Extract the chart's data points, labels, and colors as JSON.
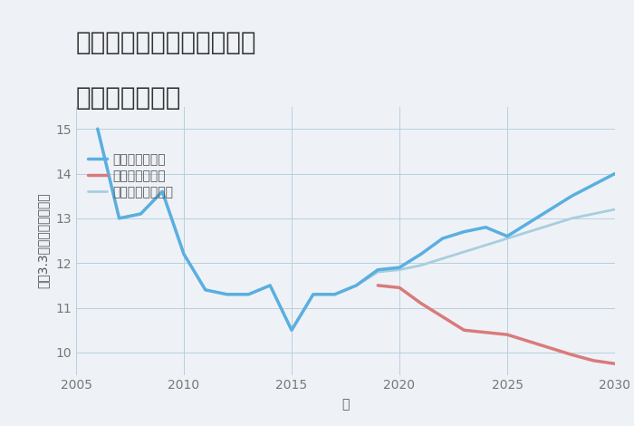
{
  "title_line1": "三重県桑名市長島町浦安の",
  "title_line2": "土地の価格推移",
  "xlabel": "年",
  "ylabel": "平（3.3㎡）単価（万円）",
  "background_color": "#eef2f7",
  "plot_background": "#eef2f7",
  "grid_color": "#b8cede",
  "good_scenario": {
    "label": "グッドシナリオ",
    "color": "#5aafe0",
    "linewidth": 2.5,
    "years": [
      2006,
      2007,
      2008,
      2009,
      2010,
      2011,
      2012,
      2013,
      2014,
      2015,
      2016,
      2017,
      2018,
      2019,
      2020,
      2021,
      2022,
      2023,
      2024,
      2025,
      2026,
      2027,
      2028,
      2029,
      2030
    ],
    "values": [
      15.0,
      13.0,
      13.1,
      13.6,
      12.2,
      11.4,
      11.3,
      11.3,
      11.5,
      10.5,
      11.3,
      11.3,
      11.5,
      11.85,
      11.9,
      12.2,
      12.55,
      12.7,
      12.8,
      12.6,
      12.9,
      13.2,
      13.5,
      13.75,
      14.0
    ]
  },
  "bad_scenario": {
    "label": "バッドシナリオ",
    "color": "#d97b7b",
    "linewidth": 2.5,
    "years": [
      2019,
      2020,
      2021,
      2022,
      2023,
      2024,
      2025,
      2026,
      2027,
      2028,
      2029,
      2030
    ],
    "values": [
      11.5,
      11.45,
      11.1,
      10.8,
      10.5,
      10.45,
      10.4,
      10.25,
      10.1,
      9.95,
      9.82,
      9.75
    ]
  },
  "normal_scenario": {
    "label": "ノーマルシナリオ",
    "color": "#a8cede",
    "linewidth": 2.0,
    "years": [
      2006,
      2007,
      2008,
      2009,
      2010,
      2011,
      2012,
      2013,
      2014,
      2015,
      2016,
      2017,
      2018,
      2019,
      2020,
      2021,
      2022,
      2023,
      2024,
      2025,
      2026,
      2027,
      2028,
      2029,
      2030
    ],
    "values": [
      15.0,
      13.0,
      13.1,
      13.6,
      12.2,
      11.4,
      11.3,
      11.3,
      11.5,
      10.5,
      11.3,
      11.3,
      11.5,
      11.8,
      11.85,
      11.95,
      12.1,
      12.25,
      12.4,
      12.55,
      12.7,
      12.85,
      13.0,
      13.1,
      13.2
    ]
  },
  "ylim": [
    9.5,
    15.5
  ],
  "yticks": [
    10,
    11,
    12,
    13,
    14,
    15
  ],
  "xticks": [
    2005,
    2010,
    2015,
    2020,
    2025,
    2030
  ],
  "legend_fontsize": 10,
  "title_fontsize": 20,
  "axis_fontsize": 10
}
